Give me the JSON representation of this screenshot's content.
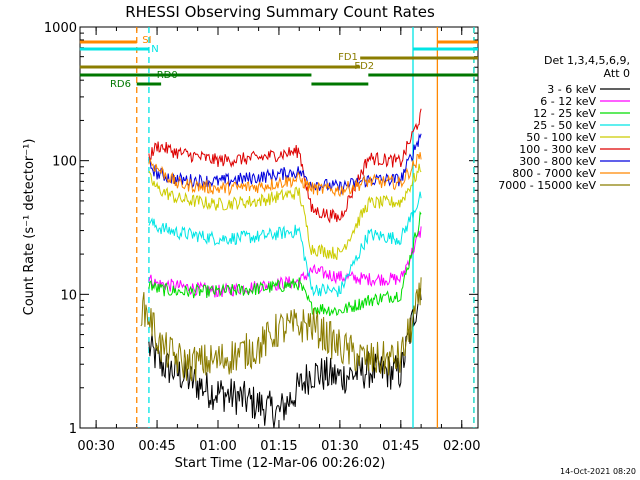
{
  "chart_data": {
    "type": "line",
    "title": "RHESSI Observing Summary Count Rates",
    "xlabel": "Start Time (12-Mar-06 00:26:02)",
    "ylabel": "Count Rate (s⁻¹ detector⁻¹)",
    "y_scale": "log",
    "ylim": [
      1,
      1000
    ],
    "xlim": [
      "00:26:02",
      "02:04:00"
    ],
    "x_ticks": [
      "00:30",
      "00:45",
      "01:00",
      "01:15",
      "01:30",
      "01:45",
      "02:00"
    ],
    "y_ticks": [
      "1",
      "10",
      "100",
      "1000"
    ],
    "footer_date": "14-Oct-2021 08:20",
    "legend": {
      "header_line1": "Det 1,3,4,5,6,9,",
      "header_line2": "Att 0",
      "entries": [
        {
          "label": "3 - 6 keV",
          "color": "#000000"
        },
        {
          "label": "6 - 12 keV",
          "color": "#ff00ff"
        },
        {
          "label": "12 - 25 keV",
          "color": "#00dd00"
        },
        {
          "label": "25 - 50 keV",
          "color": "#00e5e5"
        },
        {
          "label": "50 - 100 keV",
          "color": "#cccc00"
        },
        {
          "label": "100 - 300 keV",
          "color": "#dd0000"
        },
        {
          "label": "300 - 800 keV",
          "color": "#0000dd"
        },
        {
          "label": "800 - 7000 keV",
          "color": "#ff8800"
        },
        {
          "label": "7000 - 15000 keV",
          "color": "#8b7d00"
        }
      ]
    },
    "status_bars": [
      {
        "label": "SI",
        "color": "#ff8800",
        "segments": [
          [
            "00:26",
            "00:40"
          ],
          [
            "01:54",
            "02:04"
          ]
        ]
      },
      {
        "label": "N",
        "color": "#00e5e5",
        "segments": [
          [
            "00:26",
            "00:43"
          ],
          [
            "01:48",
            "02:04"
          ]
        ]
      },
      {
        "label": "FD1",
        "color": "#8b7d00",
        "segments": [
          [
            "00:26",
            "01:35"
          ]
        ]
      },
      {
        "label": "FD2",
        "color": "#8b7d00",
        "segments": [
          [
            "01:35",
            "02:04"
          ]
        ]
      },
      {
        "label": "RD0",
        "color": "#007700",
        "segments": [
          [
            "00:26",
            "01:23"
          ],
          [
            "01:37",
            "02:04"
          ]
        ]
      },
      {
        "label": "RD6",
        "color": "#007700",
        "segments": [
          [
            "00:40",
            "00:46"
          ],
          [
            "01:23",
            "01:37"
          ]
        ]
      }
    ],
    "vertical_markers": [
      {
        "time": "00:40",
        "color": "#ff8800",
        "style": "dashed"
      },
      {
        "time": "00:43",
        "color": "#00e5e5",
        "style": "dashed"
      },
      {
        "time": "01:48",
        "color": "#00e5e5",
        "style": "solid"
      },
      {
        "time": "01:54",
        "color": "#ff8800",
        "style": "solid"
      },
      {
        "time": "02:03",
        "color": "#ff8800",
        "style": "dashed"
      },
      {
        "time": "02:03",
        "color": "#00e5e5",
        "style": "dashed"
      }
    ],
    "series": [
      {
        "name": "3 - 6 keV",
        "color": "#000000",
        "x": [
          "00:43",
          "00:46",
          "00:50",
          "00:58",
          "01:05",
          "01:15",
          "01:23",
          "01:30",
          "01:37",
          "01:45",
          "01:50"
        ],
        "y": [
          4,
          3,
          2.6,
          1.9,
          1.7,
          1.3,
          2.6,
          2.4,
          2.7,
          2.6,
          12
        ]
      },
      {
        "name": "6 - 12 keV",
        "color": "#ff00ff",
        "x": [
          "00:43",
          "00:45",
          "00:50",
          "01:00",
          "01:10",
          "01:20",
          "01:23",
          "01:30",
          "01:37",
          "01:45",
          "01:50"
        ],
        "y": [
          13,
          12,
          11.5,
          10.5,
          11.5,
          12.5,
          15,
          13.5,
          13,
          13,
          30
        ]
      },
      {
        "name": "12 - 25 keV",
        "color": "#00dd00",
        "x": [
          "00:43",
          "00:45",
          "00:50",
          "01:00",
          "01:10",
          "01:20",
          "01:23",
          "01:30",
          "01:37",
          "01:45",
          "01:50"
        ],
        "y": [
          12,
          11,
          10.5,
          10.5,
          11,
          12,
          8,
          7.5,
          9,
          10,
          40
        ]
      },
      {
        "name": "25 - 50 keV",
        "color": "#00e5e5",
        "x": [
          "00:43",
          "00:45",
          "00:50",
          "01:00",
          "01:10",
          "01:20",
          "01:23",
          "01:30",
          "01:37",
          "01:45",
          "01:50"
        ],
        "y": [
          35,
          32,
          29,
          26,
          27,
          30,
          11,
          10.5,
          28,
          26,
          55
        ]
      },
      {
        "name": "50 - 100 keV",
        "color": "#cccc00",
        "x": [
          "00:43",
          "00:45",
          "00:50",
          "01:00",
          "01:10",
          "01:20",
          "01:23",
          "01:30",
          "01:37",
          "01:45",
          "01:50"
        ],
        "y": [
          75,
          62,
          52,
          47,
          50,
          58,
          22,
          20,
          48,
          49,
          90
        ]
      },
      {
        "name": "100 - 300 keV",
        "color": "#dd0000",
        "x": [
          "00:43",
          "00:45",
          "00:50",
          "01:00",
          "01:10",
          "01:20",
          "01:23",
          "01:30",
          "01:37",
          "01:45",
          "01:50"
        ],
        "y": [
          105,
          130,
          115,
          100,
          105,
          118,
          43,
          37,
          105,
          98,
          220
        ]
      },
      {
        "name": "300 - 800 keV",
        "color": "#0000dd",
        "x": [
          "00:43",
          "00:45",
          "00:50",
          "01:00",
          "01:10",
          "01:20",
          "01:23",
          "01:30",
          "01:37",
          "01:45",
          "01:50"
        ],
        "y": [
          95,
          80,
          72,
          70,
          75,
          83,
          68,
          63,
          72,
          72,
          160
        ]
      },
      {
        "name": "800 - 7000 keV",
        "color": "#ff8800",
        "x": [
          "00:43",
          "00:45",
          "00:50",
          "01:00",
          "01:10",
          "01:20",
          "01:23",
          "01:30",
          "01:37",
          "01:45",
          "01:50"
        ],
        "y": [
          100,
          88,
          67,
          62,
          64,
          73,
          62,
          60,
          70,
          68,
          110
        ]
      },
      {
        "name": "7000 - 15000 keV",
        "color": "#8b7d00",
        "x": [
          "00:41",
          "00:43",
          "00:46",
          "00:52",
          "01:00",
          "01:10",
          "01:15",
          "01:23",
          "01:30",
          "01:37",
          "01:45",
          "01:50"
        ],
        "y": [
          8,
          7,
          4,
          3,
          3.2,
          4,
          5.5,
          6,
          4,
          3.2,
          3.3,
          10
        ]
      }
    ]
  }
}
